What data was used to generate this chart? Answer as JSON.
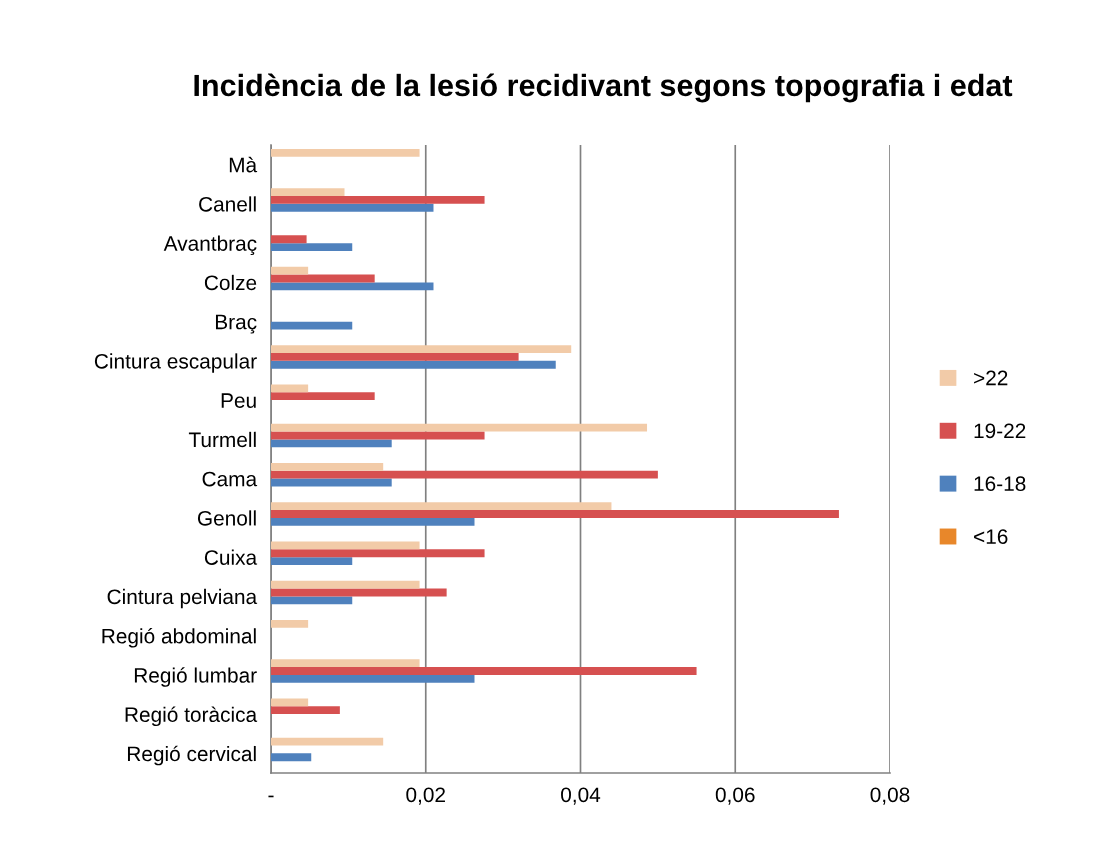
{
  "chart_data": {
    "type": "bar",
    "orientation": "horizontal",
    "title": "Incidència de la lesió recidivant segons topografia i edat",
    "categories": [
      "Mà",
      "Canell",
      "Avantbraç",
      "Colze",
      "Braç",
      "Cintura escapular",
      "Peu",
      "Turmell",
      "Cama",
      "Genoll",
      "Cuixa",
      "Cintura pelviana",
      "Regió abdominal",
      "Regió lumbar",
      "Regió toràcica",
      "Regió cervical"
    ],
    "series": [
      {
        "name": "<16",
        "color": "#e8872a",
        "values": [
          0,
          0,
          0,
          0,
          0,
          0,
          0,
          0,
          0,
          0,
          0,
          0,
          0,
          0,
          0,
          0
        ]
      },
      {
        "name": "16-18",
        "color": "#4f81bd",
        "values": [
          0,
          0.021,
          0.0105,
          0.021,
          0.0105,
          0.0368,
          0,
          0.0156,
          0.0156,
          0.0263,
          0.0105,
          0.0105,
          0,
          0.0263,
          0,
          0.0052
        ]
      },
      {
        "name": "19-22",
        "color": "#d65050",
        "values": [
          0,
          0.0276,
          0.0046,
          0.0134,
          0,
          0.032,
          0.0134,
          0.0276,
          0.05,
          0.0734,
          0.0276,
          0.0227,
          0,
          0.055,
          0.0089,
          0
        ]
      },
      {
        "name": ">22",
        "color": "#f2cba8",
        "values": [
          0.0192,
          0.0095,
          0,
          0.0048,
          0,
          0.0388,
          0.0048,
          0.0486,
          0.0145,
          0.044,
          0.0192,
          0.0192,
          0.0048,
          0.0192,
          0.0048,
          0.0145
        ]
      }
    ],
    "xlim": [
      0,
      0.08
    ],
    "xticks": [
      {
        "value": 0,
        "label": "-"
      },
      {
        "value": 0.02,
        "label": "0,02"
      },
      {
        "value": 0.04,
        "label": "0,04"
      },
      {
        "value": 0.06,
        "label": "0,06"
      },
      {
        "value": 0.08,
        "label": "0,08"
      }
    ],
    "grid": "x",
    "legend": "right"
  }
}
